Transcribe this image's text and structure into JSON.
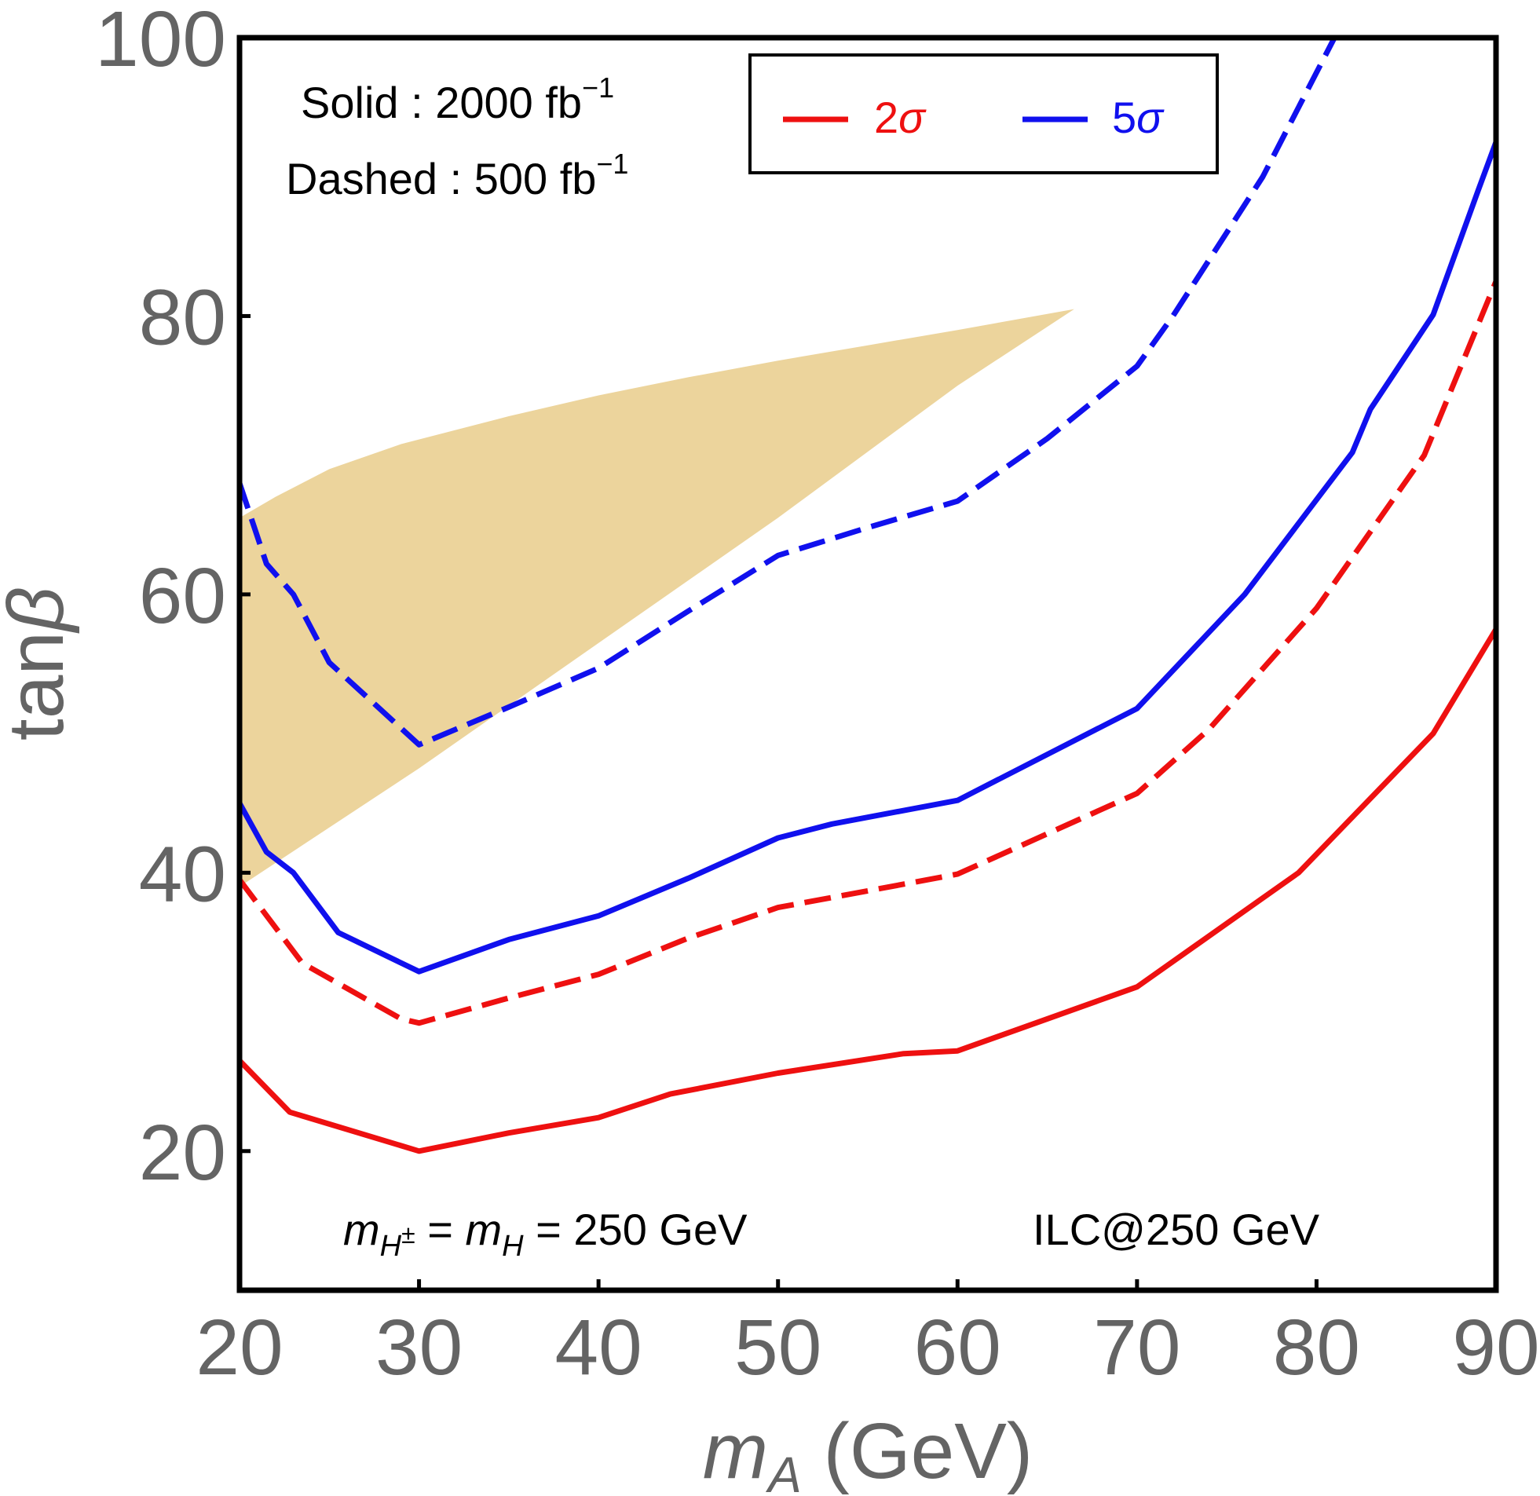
{
  "chart_data": {
    "type": "line",
    "xlabel_main": "m",
    "xlabel_sub": "A",
    "xlabel_unit": " (GeV)",
    "ylabel_main": "tan",
    "ylabel_greek": "β",
    "xlim": [
      20,
      90
    ],
    "ylim": [
      10,
      100
    ],
    "xticks": [
      20,
      30,
      40,
      50,
      60,
      70,
      80,
      90
    ],
    "yticks": [
      20,
      40,
      60,
      80,
      100
    ],
    "xtick_labels": [
      "20",
      "30",
      "40",
      "50",
      "60",
      "70",
      "80",
      "90"
    ],
    "ytick_labels": [
      "20",
      "40",
      "60",
      "80",
      "100"
    ],
    "shaded_region": {
      "color": "#ecd49c",
      "upper": [
        [
          20,
          65.5
        ],
        [
          22,
          67
        ],
        [
          25,
          69
        ],
        [
          29,
          70.8
        ],
        [
          35,
          72.8
        ],
        [
          40,
          74.3
        ],
        [
          45,
          75.6
        ],
        [
          50,
          76.8
        ],
        [
          55,
          77.9
        ],
        [
          60,
          79
        ],
        [
          66.5,
          80.5
        ]
      ],
      "lower": [
        [
          66.5,
          80.5
        ],
        [
          60,
          75
        ],
        [
          50,
          65.5
        ],
        [
          40,
          56.5
        ],
        [
          30,
          47.5
        ],
        [
          20,
          39
        ]
      ]
    },
    "series": [
      {
        "name": "2σ solid",
        "color": "#ee1010",
        "style": "solid",
        "x": [
          20,
          22.8,
          30,
          35,
          40,
          44,
          50,
          57,
          60,
          70,
          79,
          86.5,
          90
        ],
        "y": [
          26.5,
          22.8,
          20,
          21.3,
          22.4,
          24.1,
          25.6,
          27,
          27.2,
          31.8,
          40,
          50,
          57.5
        ]
      },
      {
        "name": "2σ dashed",
        "color": "#ee1010",
        "style": "dashed",
        "x": [
          20,
          23.5,
          29,
          30,
          35,
          40,
          45,
          50,
          55,
          60,
          70,
          74,
          80,
          86,
          90
        ],
        "y": [
          39.5,
          33.5,
          29.5,
          29.2,
          31,
          32.7,
          35.3,
          37.5,
          38.7,
          39.9,
          45.7,
          50.3,
          59,
          70,
          82.5
        ]
      },
      {
        "name": "5σ solid",
        "color": "#1010ee",
        "style": "solid",
        "x": [
          20,
          21.5,
          23,
          25.5,
          30,
          35,
          40,
          45,
          50,
          53,
          60,
          70,
          76,
          82,
          83,
          86.5,
          89,
          90
        ],
        "y": [
          45,
          41.5,
          40,
          35.7,
          32.9,
          35.2,
          36.9,
          39.6,
          42.5,
          43.5,
          45.2,
          51.8,
          60,
          70.2,
          73.3,
          80.1,
          89,
          92.5
        ]
      },
      {
        "name": "5σ dashed",
        "color": "#1010ee",
        "style": "dashed",
        "x": [
          20,
          21.5,
          23,
          25,
          30,
          35,
          40,
          45,
          50,
          55,
          60,
          65,
          70,
          72,
          77,
          81
        ],
        "y": [
          68,
          62.2,
          60,
          55.1,
          49.2,
          51.9,
          54.7,
          58.8,
          62.8,
          64.8,
          66.7,
          71.2,
          76.4,
          80,
          90,
          100
        ]
      }
    ]
  },
  "annotations": {
    "solid_prefix": "Solid : 2000 fb",
    "solid_exp": "−1",
    "dashed_prefix": "Dashed : 500  fb",
    "dashed_exp": "−1",
    "mass_m1": "m",
    "mass_sub1": "H",
    "mass_sup1": "±",
    "mass_eq1": " = ",
    "mass_m2": "m",
    "mass_sub2": "H",
    "mass_rest": " = 250 GeV",
    "collider": "ILC@250 GeV"
  },
  "legend": {
    "items": [
      {
        "num": "2",
        "sym": "σ",
        "color": "#ee1010"
      },
      {
        "num": "5",
        "sym": "σ",
        "color": "#1010ee"
      }
    ]
  }
}
